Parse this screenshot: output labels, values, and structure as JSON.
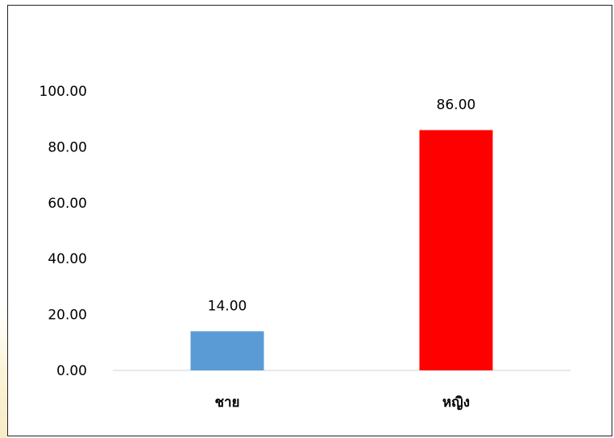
{
  "chart_data": {
    "type": "bar",
    "categories": [
      "ชาย",
      "หญิง"
    ],
    "values": [
      14.0,
      86.0
    ],
    "value_labels": [
      "14.00",
      "86.00"
    ],
    "bar_colors": [
      "#5b9bd5",
      "#ff0000"
    ],
    "yticks": [
      "0.00",
      "20.00",
      "40.00",
      "60.00",
      "80.00",
      "100.00"
    ],
    "ylim": [
      0,
      100
    ],
    "grid": false,
    "legend": "none",
    "title": "",
    "xlabel": "",
    "ylabel": ""
  }
}
